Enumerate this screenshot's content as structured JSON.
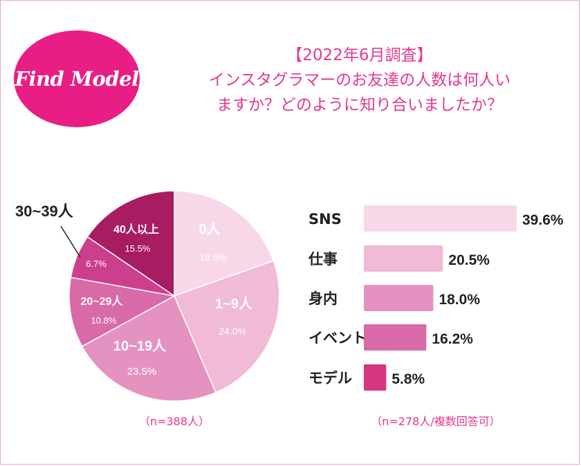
{
  "logo": {
    "text": "Find Model"
  },
  "title": {
    "line1": "【2022年6月調査】",
    "line2": "インスタグラマーのお友達の人数は何人い",
    "line3": "ますか？どのように知り合いましたか？"
  },
  "colors": {
    "brand": "#e91e84",
    "title": "#e33890",
    "pie": [
      "#f8d8e8",
      "#f1bad6",
      "#e493c0",
      "#d96aa8",
      "#cc3f8c",
      "#a81d62"
    ],
    "bars": [
      "#f8d8e8",
      "#f1bad6",
      "#e493c0",
      "#d96aa8",
      "#d6357f"
    ]
  },
  "chart_data": [
    {
      "type": "pie",
      "note": "（n=388人）",
      "slices": [
        {
          "label": "0人",
          "value": 19.6,
          "pct": "19.6%"
        },
        {
          "label": "1~9人",
          "value": 24.0,
          "pct": "24.0%"
        },
        {
          "label": "10~19人",
          "value": 23.5,
          "pct": "23.5%"
        },
        {
          "label": "20~29人",
          "value": 10.8,
          "pct": "10.8%"
        },
        {
          "label": "30~39人",
          "value": 6.7,
          "pct": "6.7%"
        },
        {
          "label": "40人以上",
          "value": 15.5,
          "pct": "15.5%"
        }
      ]
    },
    {
      "type": "bar",
      "orientation": "horizontal",
      "note": "（n=278人/複数回答可）",
      "categories": [
        "SNS",
        "仕事",
        "身内",
        "イベント",
        "モデル"
      ],
      "values": [
        39.6,
        20.5,
        18.0,
        16.2,
        5.8
      ],
      "value_labels": [
        "39.6%",
        "20.5%",
        "18.0%",
        "16.2%",
        "5.8%"
      ]
    }
  ]
}
